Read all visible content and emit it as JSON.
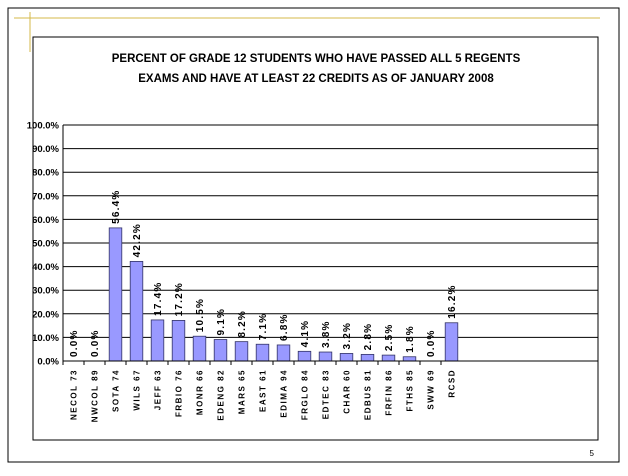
{
  "slide": {
    "page_number": "5"
  },
  "chart_data": {
    "type": "bar",
    "title": [
      "PERCENT OF GRADE 12 STUDENTS WHO HAVE PASSED ALL 5 REGENTS",
      "EXAMS AND HAVE AT LEAST 22 CREDITS AS OF JANUARY 2008"
    ],
    "categories": [
      "NECOL 73",
      "NWCOL 89",
      "SOTA 74",
      "WILS 67",
      "JEFF 63",
      "FRBIO 76",
      "MONR 66",
      "EDENG 82",
      "MARS 65",
      "EAST 61",
      "EDIMA 94",
      "FRGLO 84",
      "EDTEC 83",
      "CHAR 60",
      "EDBUS 81",
      "FRFIN 86",
      "FTHS 85",
      "SWW 69",
      "RCSD"
    ],
    "values": [
      0.0,
      0.0,
      56.4,
      42.2,
      17.4,
      17.2,
      10.5,
      9.1,
      8.2,
      7.1,
      6.8,
      4.1,
      3.8,
      3.2,
      2.8,
      2.5,
      1.8,
      0.0,
      16.2
    ],
    "value_labels": [
      "0.0%",
      "0.0%",
      "56.4%",
      "42.2%",
      "17.4%",
      "17.2%",
      "10.5%",
      "9.1%",
      "8.2%",
      "7.1%",
      "6.8%",
      "4.1%",
      "3.8%",
      "3.2%",
      "2.8%",
      "2.5%",
      "1.8%",
      "0.0%",
      "16.2%"
    ],
    "color": "#9999ff",
    "ylim": [
      0,
      100
    ],
    "yticks": [
      {
        "value": 0,
        "label": "0.0%"
      },
      {
        "value": 10,
        "label": "10.0%"
      },
      {
        "value": 20,
        "label": "20.0%"
      },
      {
        "value": 30,
        "label": "30.0%"
      },
      {
        "value": 40,
        "label": "40.0%"
      },
      {
        "value": 50,
        "label": "50.0%"
      },
      {
        "value": 60,
        "label": "60.0%"
      },
      {
        "value": 70,
        "label": "70.0%"
      },
      {
        "value": 80,
        "label": "80.0%"
      },
      {
        "value": 90,
        "label": "90.0%"
      },
      {
        "value": 100,
        "label": "100.0%"
      }
    ],
    "grid": true
  }
}
